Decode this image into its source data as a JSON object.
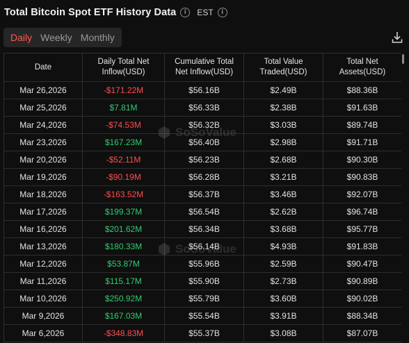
{
  "header": {
    "title": "Total Bitcoin Spot ETF History Data",
    "timezone": "EST"
  },
  "tabs": [
    {
      "label": "Daily",
      "active": true
    },
    {
      "label": "Weekly",
      "active": false
    },
    {
      "label": "Monthly",
      "active": false
    }
  ],
  "watermark": "SoSoValue",
  "table": {
    "columns": {
      "date": "Date",
      "daily_inflow": "Daily Total Net Inflow(USD)",
      "cumulative_inflow": "Cumulative Total Net Inflow(USD)",
      "value_traded": "Total Value Traded(USD)",
      "net_assets": "Total Net Assets(USD)"
    },
    "rows": [
      {
        "date": "Mar 26,2026",
        "daily": "-$171.22M",
        "sign": "neg",
        "cum": "$56.16B",
        "traded": "$2.49B",
        "assets": "$88.36B"
      },
      {
        "date": "Mar 25,2026",
        "daily": "$7.81M",
        "sign": "pos",
        "cum": "$56.33B",
        "traded": "$2.38B",
        "assets": "$91.63B"
      },
      {
        "date": "Mar 24,2026",
        "daily": "-$74.53M",
        "sign": "neg",
        "cum": "$56.32B",
        "traded": "$3.03B",
        "assets": "$89.74B"
      },
      {
        "date": "Mar 23,2026",
        "daily": "$167.23M",
        "sign": "pos",
        "cum": "$56.40B",
        "traded": "$2.98B",
        "assets": "$91.71B"
      },
      {
        "date": "Mar 20,2026",
        "daily": "-$52.11M",
        "sign": "neg",
        "cum": "$56.23B",
        "traded": "$2.68B",
        "assets": "$90.30B"
      },
      {
        "date": "Mar 19,2026",
        "daily": "-$90.19M",
        "sign": "neg",
        "cum": "$56.28B",
        "traded": "$3.21B",
        "assets": "$90.83B"
      },
      {
        "date": "Mar 18,2026",
        "daily": "-$163.52M",
        "sign": "neg",
        "cum": "$56.37B",
        "traded": "$3.46B",
        "assets": "$92.07B"
      },
      {
        "date": "Mar 17,2026",
        "daily": "$199.37M",
        "sign": "pos",
        "cum": "$56.54B",
        "traded": "$2.62B",
        "assets": "$96.74B"
      },
      {
        "date": "Mar 16,2026",
        "daily": "$201.62M",
        "sign": "pos",
        "cum": "$56.34B",
        "traded": "$3.68B",
        "assets": "$95.77B"
      },
      {
        "date": "Mar 13,2026",
        "daily": "$180.33M",
        "sign": "pos",
        "cum": "$56.14B",
        "traded": "$4.93B",
        "assets": "$91.83B"
      },
      {
        "date": "Mar 12,2026",
        "daily": "$53.87M",
        "sign": "pos",
        "cum": "$55.96B",
        "traded": "$2.59B",
        "assets": "$90.47B"
      },
      {
        "date": "Mar 11,2026",
        "daily": "$115.17M",
        "sign": "pos",
        "cum": "$55.90B",
        "traded": "$2.73B",
        "assets": "$90.89B"
      },
      {
        "date": "Mar 10,2026",
        "daily": "$250.92M",
        "sign": "pos",
        "cum": "$55.79B",
        "traded": "$3.60B",
        "assets": "$90.02B"
      },
      {
        "date": "Mar 9,2026",
        "daily": "$167.03M",
        "sign": "pos",
        "cum": "$55.54B",
        "traded": "$3.91B",
        "assets": "$88.34B"
      },
      {
        "date": "Mar 6,2026",
        "daily": "-$348.83M",
        "sign": "neg",
        "cum": "$55.37B",
        "traded": "$3.08B",
        "assets": "$87.07B"
      }
    ]
  },
  "colors": {
    "positive": "#2ecc71",
    "negative": "#ff4d4f",
    "accent": "#ff5a50",
    "background": "#0f0f0f"
  },
  "icons": {
    "info": "info-icon",
    "download": "download-icon"
  }
}
